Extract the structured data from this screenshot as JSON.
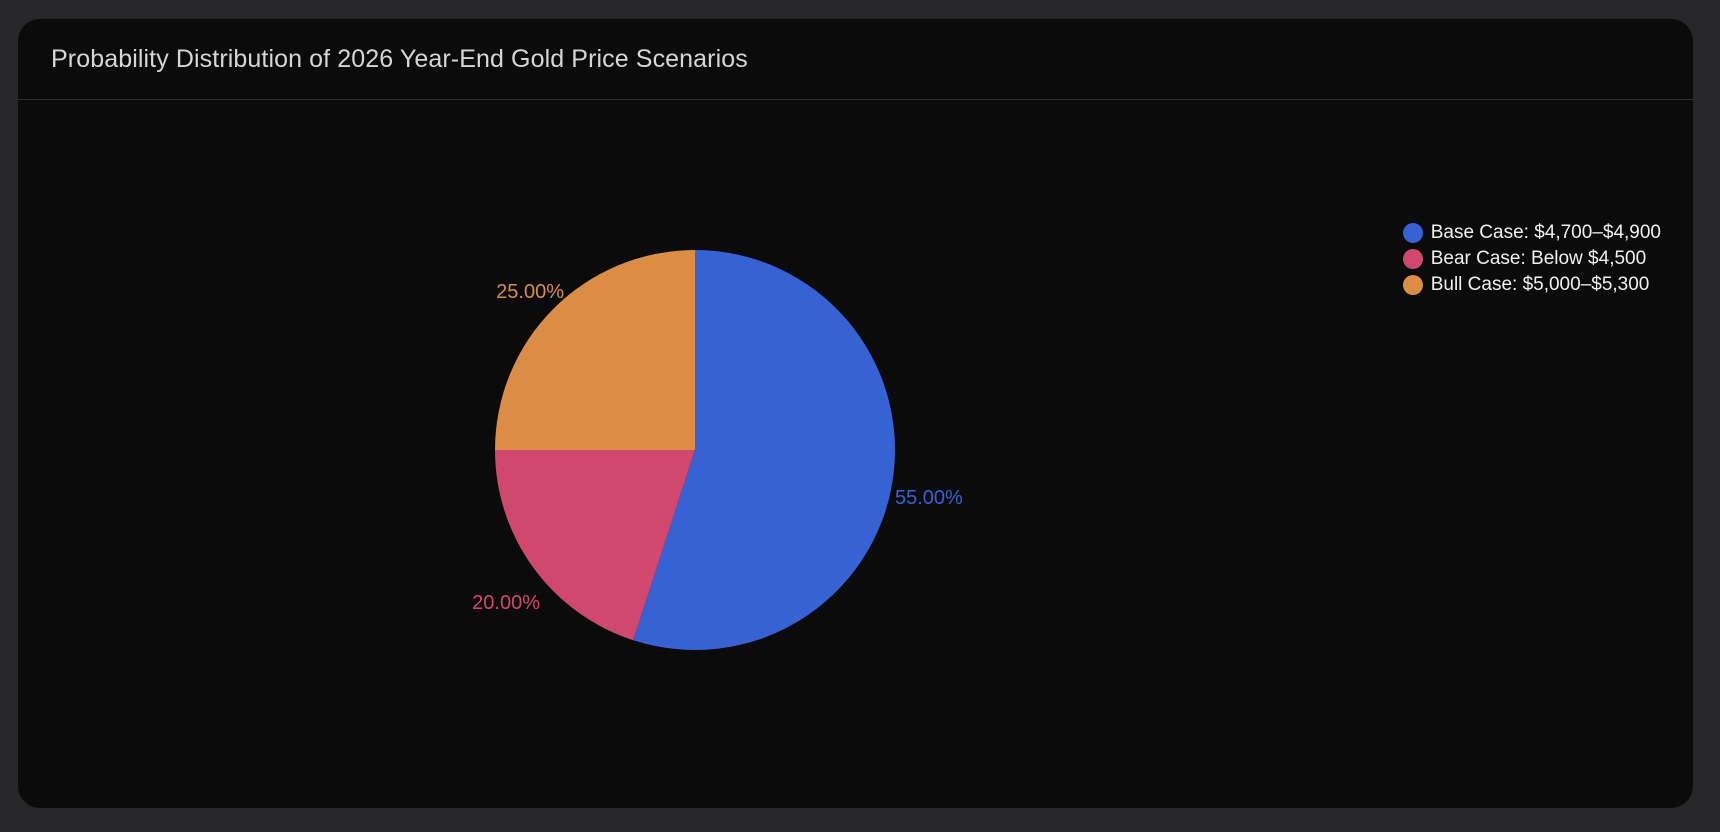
{
  "header": {
    "title": "Probability Distribution of 2026 Year-End Gold Price Scenarios"
  },
  "legend": {
    "items": [
      {
        "label": "Base Case: $4,700–$4,900",
        "color": "#3762d3"
      },
      {
        "label": "Bear Case: Below $4,500",
        "color": "#d1486f"
      },
      {
        "label": "Bull Case: $5,000–$5,300",
        "color": "#db8d46"
      }
    ]
  },
  "chart_data": {
    "type": "pie",
    "title": "Probability Distribution of 2026 Year-End Gold Price Scenarios",
    "categories": [
      "Base Case: $4,700–$4,900",
      "Bear Case: Below $4,500",
      "Bull Case: $5,000–$5,300"
    ],
    "values": [
      55,
      20,
      25
    ],
    "labels": [
      "55.00%",
      "20.00%",
      "25.00%"
    ],
    "colors": [
      "#3762d3",
      "#d1486f",
      "#db8d46"
    ],
    "legend_position": "top-right"
  }
}
